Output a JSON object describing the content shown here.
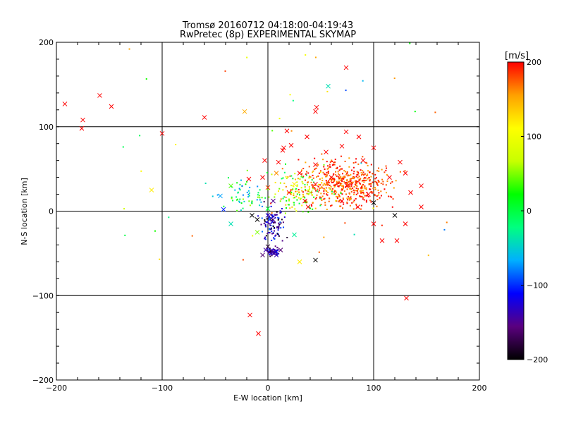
{
  "chart_data": {
    "type": "scatter",
    "title": "Tromsø 20160712 04:18:00-04:19:43",
    "subtitle": "RwPretec (8p) EXPERIMENTAL SKYMAP",
    "xlabel": "E-W location [km]",
    "ylabel": "N-S location [km]",
    "xlim": [
      -200,
      200
    ],
    "ylim": [
      -200,
      200
    ],
    "xticks": [
      -200,
      -100,
      0,
      100,
      200
    ],
    "yticks": [
      -200,
      -100,
      0,
      100,
      200
    ],
    "grid": true,
    "colorbar": {
      "label": "[m/s]",
      "range": [
        -200,
        200
      ],
      "ticks": [
        200,
        100,
        0,
        -100,
        -200
      ],
      "stops": [
        "#000000",
        "#5a007f",
        "#0000ff",
        "#00b0ff",
        "#00ff80",
        "#00ff00",
        "#c8ff00",
        "#ffff00",
        "#ffa000",
        "#ff0000"
      ]
    },
    "marker_legend": "dots = single detections, crosses = averaged detections",
    "crosses": [
      {
        "x": -192,
        "y": 127,
        "v": 200
      },
      {
        "x": -175,
        "y": 108,
        "v": 200
      },
      {
        "x": -176,
        "y": 98,
        "v": 200
      },
      {
        "x": -159,
        "y": 137,
        "v": 200
      },
      {
        "x": -148,
        "y": 124,
        "v": 200
      },
      {
        "x": -100,
        "y": 92,
        "v": 200
      },
      {
        "x": -60,
        "y": 111,
        "v": 200
      },
      {
        "x": -22,
        "y": 118,
        "v": 150
      },
      {
        "x": -110,
        "y": 25,
        "v": 120
      },
      {
        "x": 74,
        "y": 170,
        "v": 200
      },
      {
        "x": 57,
        "y": 148,
        "v": -40
      },
      {
        "x": 46,
        "y": 123,
        "v": 200
      },
      {
        "x": 45,
        "y": 118,
        "v": 200
      },
      {
        "x": 18,
        "y": 95,
        "v": 200
      },
      {
        "x": 37,
        "y": 88,
        "v": 200
      },
      {
        "x": 74,
        "y": 94,
        "v": 200
      },
      {
        "x": 86,
        "y": 88,
        "v": 200
      },
      {
        "x": 15,
        "y": 75,
        "v": 200
      },
      {
        "x": 14,
        "y": 72,
        "v": 200
      },
      {
        "x": 22,
        "y": 78,
        "v": 200
      },
      {
        "x": 55,
        "y": 70,
        "v": 200
      },
      {
        "x": 70,
        "y": 77,
        "v": 200
      },
      {
        "x": 100,
        "y": 75,
        "v": 200
      },
      {
        "x": -3,
        "y": 60,
        "v": 200
      },
      {
        "x": 10,
        "y": 58,
        "v": 200
      },
      {
        "x": 45,
        "y": 55,
        "v": 200
      },
      {
        "x": 90,
        "y": 60,
        "v": 200
      },
      {
        "x": 125,
        "y": 58,
        "v": 200
      },
      {
        "x": 130,
        "y": 45,
        "v": 200
      },
      {
        "x": -18,
        "y": 38,
        "v": 200
      },
      {
        "x": -5,
        "y": 40,
        "v": 200
      },
      {
        "x": 8,
        "y": 45,
        "v": 160
      },
      {
        "x": 30,
        "y": 45,
        "v": 200
      },
      {
        "x": 60,
        "y": 40,
        "v": 200
      },
      {
        "x": 115,
        "y": 40,
        "v": 200
      },
      {
        "x": -35,
        "y": 30,
        "v": 40
      },
      {
        "x": 0,
        "y": 28,
        "v": 180
      },
      {
        "x": 25,
        "y": 32,
        "v": 120
      },
      {
        "x": 45,
        "y": 32,
        "v": 200
      },
      {
        "x": 75,
        "y": 30,
        "v": 200
      },
      {
        "x": 145,
        "y": 30,
        "v": 200
      },
      {
        "x": -45,
        "y": 18,
        "v": -70
      },
      {
        "x": 20,
        "y": 22,
        "v": 200
      },
      {
        "x": 40,
        "y": 22,
        "v": 60
      },
      {
        "x": 95,
        "y": 20,
        "v": 200
      },
      {
        "x": 135,
        "y": 22,
        "v": 200
      },
      {
        "x": 5,
        "y": 12,
        "v": -150
      },
      {
        "x": 35,
        "y": 12,
        "v": 200
      },
      {
        "x": 70,
        "y": 12,
        "v": 200
      },
      {
        "x": 100,
        "y": 10,
        "v": -200
      },
      {
        "x": 145,
        "y": 5,
        "v": 200
      },
      {
        "x": -42,
        "y": 2,
        "v": -100
      },
      {
        "x": 0,
        "y": 3,
        "v": 0
      },
      {
        "x": 38,
        "y": 5,
        "v": 200
      },
      {
        "x": 85,
        "y": 5,
        "v": 200
      },
      {
        "x": 120,
        "y": -5,
        "v": -200
      },
      {
        "x": -35,
        "y": -15,
        "v": -40
      },
      {
        "x": 5,
        "y": -10,
        "v": -150
      },
      {
        "x": 100,
        "y": -15,
        "v": 200
      },
      {
        "x": 130,
        "y": -15,
        "v": 200
      },
      {
        "x": -10,
        "y": -25,
        "v": 50
      },
      {
        "x": 25,
        "y": -28,
        "v": -30
      },
      {
        "x": 108,
        "y": -35,
        "v": 200
      },
      {
        "x": 122,
        "y": -35,
        "v": 200
      },
      {
        "x": -2,
        "y": -46,
        "v": -140
      },
      {
        "x": 5,
        "y": -48,
        "v": -150
      },
      {
        "x": 12,
        "y": -46,
        "v": -160
      },
      {
        "x": -5,
        "y": -52,
        "v": -160
      },
      {
        "x": 8,
        "y": -52,
        "v": -140
      },
      {
        "x": 0,
        "y": -42,
        "v": -180
      },
      {
        "x": 30,
        "y": -60,
        "v": 120
      },
      {
        "x": 45,
        "y": -58,
        "v": -200
      },
      {
        "x": -17,
        "y": -123,
        "v": 200
      },
      {
        "x": -9,
        "y": -145,
        "v": 200
      },
      {
        "x": 131,
        "y": -103,
        "v": 200
      },
      {
        "x": 0,
        "y": -5,
        "v": -130
      },
      {
        "x": -10,
        "y": -10,
        "v": -200
      },
      {
        "x": -15,
        "y": -5,
        "v": -200
      }
    ]
  }
}
